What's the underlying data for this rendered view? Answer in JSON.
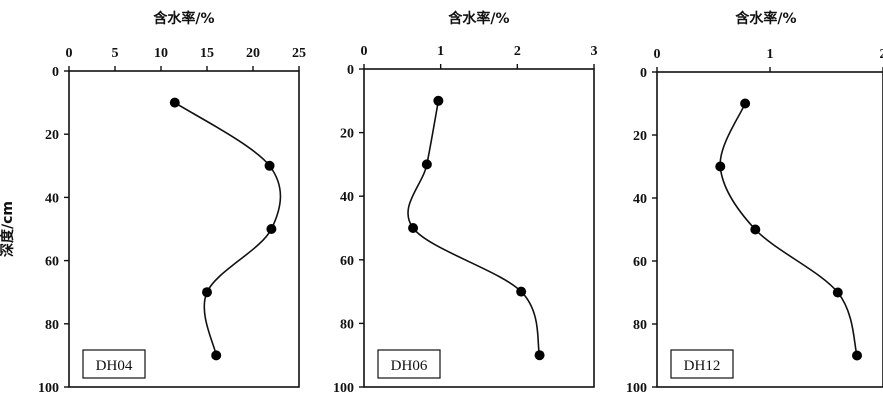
{
  "chart_data": [
    {
      "type": "line",
      "title": "",
      "xlabel": "含水率/%",
      "ylabel": "深度/cm",
      "xlim": [
        0,
        25
      ],
      "ylim": [
        0,
        100
      ],
      "y_inverted": true,
      "x_ticks": [
        "0",
        "5",
        "10",
        "15",
        "20",
        "25"
      ],
      "y_ticks": [
        "0",
        "20",
        "40",
        "60",
        "80",
        "100"
      ],
      "x_axis_position": "top",
      "grid": false,
      "label": "DH04",
      "label_position": "bottom-left",
      "series": [
        {
          "x": [
            11.5,
            21.8,
            22.0,
            15.0,
            16.0
          ],
          "y": [
            10,
            30,
            50,
            70,
            90
          ]
        }
      ]
    },
    {
      "type": "line",
      "title": "",
      "xlabel": "含水率/%",
      "ylabel": "",
      "xlim": [
        0,
        3
      ],
      "ylim": [
        0,
        100
      ],
      "y_inverted": true,
      "x_ticks": [
        "0",
        "1",
        "2",
        "3"
      ],
      "y_ticks": [
        "0",
        "20",
        "40",
        "60",
        "80",
        "100"
      ],
      "x_axis_position": "top",
      "grid": false,
      "label": "DH06",
      "label_position": "bottom-left",
      "series": [
        {
          "x": [
            0.97,
            0.82,
            0.64,
            2.05,
            2.29
          ],
          "y": [
            10,
            30,
            50,
            70,
            90
          ]
        }
      ]
    },
    {
      "type": "line",
      "title": "",
      "xlabel": "含水率/%",
      "ylabel": "",
      "xlim": [
        0,
        2
      ],
      "ylim": [
        0,
        100
      ],
      "y_inverted": true,
      "x_ticks": [
        "0",
        "1",
        "2"
      ],
      "y_ticks": [
        "0",
        "20",
        "40",
        "60",
        "80",
        "100"
      ],
      "x_axis_position": "top",
      "grid": false,
      "label": "DH12",
      "label_position": "bottom-left",
      "series": [
        {
          "x": [
            0.78,
            0.56,
            0.87,
            1.6,
            1.77
          ],
          "y": [
            10,
            30,
            50,
            70,
            90
          ]
        }
      ]
    }
  ],
  "colors": {
    "line": "#111111",
    "marker": "#000000",
    "frame": "#111111"
  }
}
